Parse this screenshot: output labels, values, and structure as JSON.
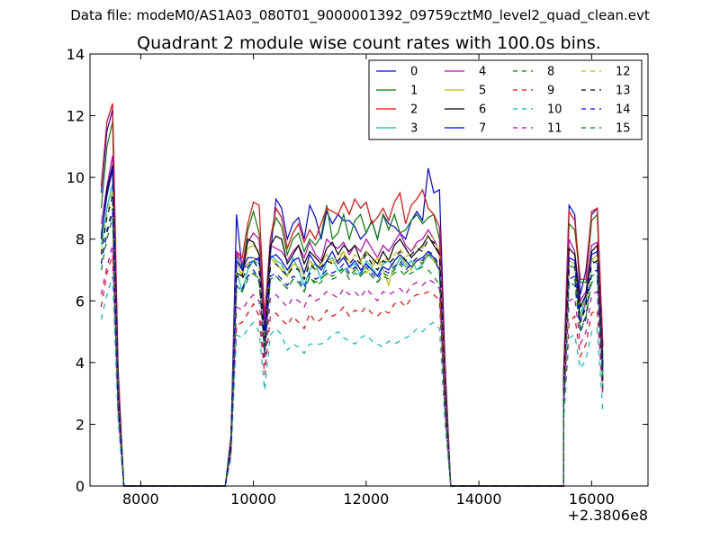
{
  "suptitle": "Data file: modeM0/AS1A03_080T01_9000001392_09759cztM0_level2_quad_clean.evt",
  "chart_data": {
    "type": "line",
    "title": "Quadrant 2 module wise count rates with 100.0s bins.",
    "xlabel": "",
    "ylabel": "",
    "x_offset_label": "+2.3806e8",
    "xlim": [
      7100,
      17000
    ],
    "ylim": [
      0,
      14
    ],
    "xticks": [
      8000,
      10000,
      12000,
      14000,
      16000
    ],
    "yticks": [
      0,
      2,
      4,
      6,
      8,
      10,
      12,
      14
    ],
    "grid": false,
    "legend": {
      "placement": "top-right",
      "columns": 4
    },
    "x": [
      7300,
      7400,
      7500,
      7600,
      7700,
      9500,
      9600,
      9700,
      9800,
      9900,
      10000,
      10100,
      10200,
      10300,
      10400,
      10500,
      10600,
      10700,
      10800,
      10900,
      11000,
      11100,
      11200,
      11300,
      11400,
      11500,
      11600,
      11700,
      11800,
      11900,
      12000,
      12100,
      12200,
      12300,
      12400,
      12500,
      12600,
      12700,
      12800,
      12900,
      13000,
      13100,
      13200,
      13300,
      13400,
      13500,
      15500,
      15600,
      15700,
      15800,
      15900,
      16000,
      16100,
      16200
    ],
    "gaps_after_x": [
      7700,
      13500
    ],
    "series": [
      {
        "name": "0",
        "color": "#0000ff",
        "dash": "solid",
        "values": [
          9.5,
          11.5,
          12.2,
          3.5,
          0,
          0,
          1.5,
          8.8,
          7.0,
          7.2,
          7.3,
          7.4,
          5.2,
          7.5,
          9.3,
          9.0,
          8.0,
          8.5,
          8.7,
          8.0,
          9.1,
          8.7,
          8.0,
          8.9,
          8.5,
          8.8,
          8.6,
          8.6,
          8.4,
          8.0,
          8.2,
          8.6,
          8.0,
          8.8,
          8.5,
          8.4,
          8.2,
          8.0,
          8.6,
          8.9,
          8.6,
          10.3,
          9.5,
          9.6,
          4.0,
          0,
          3.5,
          9.1,
          8.8,
          6.2,
          7.0,
          8.8,
          9.0,
          4.5
        ]
      },
      {
        "name": "1",
        "color": "#008000",
        "dash": "solid",
        "values": [
          9.0,
          11.0,
          11.8,
          3.5,
          0,
          0,
          1.5,
          7.5,
          7.0,
          8.3,
          8.9,
          8.2,
          5.5,
          8.0,
          8.7,
          8.4,
          7.5,
          8.0,
          8.2,
          7.6,
          8.0,
          7.8,
          8.1,
          9.1,
          8.0,
          8.2,
          8.8,
          8.0,
          8.6,
          8.8,
          8.2,
          8.6,
          8.0,
          8.8,
          8.3,
          8.8,
          8.2,
          8.3,
          8.6,
          8.8,
          8.5,
          8.7,
          8.8,
          8.0,
          3.5,
          0,
          3.5,
          8.5,
          8.3,
          6.6,
          6.6,
          8.6,
          8.8,
          4.2
        ]
      },
      {
        "name": "2",
        "color": "#ff0000",
        "dash": "solid",
        "values": [
          9.7,
          11.8,
          12.4,
          3.8,
          0,
          0,
          1.6,
          7.6,
          7.4,
          8.5,
          9.2,
          9.1,
          5.4,
          8.0,
          9.0,
          8.7,
          7.7,
          8.2,
          8.5,
          7.9,
          8.3,
          8.0,
          8.5,
          9.0,
          8.9,
          8.8,
          9.2,
          8.8,
          9.3,
          9.0,
          9.2,
          8.5,
          8.7,
          9.0,
          8.6,
          9.2,
          9.5,
          8.5,
          9.1,
          9.3,
          9.6,
          9.0,
          8.8,
          8.4,
          3.7,
          0,
          3.5,
          8.9,
          8.6,
          6.7,
          6.7,
          8.9,
          9.0,
          4.5
        ]
      },
      {
        "name": "3",
        "color": "#00bfbf",
        "dash": "solid",
        "values": [
          7.8,
          9.0,
          9.8,
          2.8,
          0,
          0,
          1.2,
          7.0,
          6.3,
          7.0,
          7.3,
          7.2,
          4.5,
          7.5,
          7.3,
          7.2,
          6.8,
          7.4,
          7.0,
          6.5,
          7.0,
          7.2,
          6.7,
          7.3,
          7.4,
          7.0,
          7.0,
          7.1,
          7.2,
          6.8,
          7.3,
          7.1,
          6.8,
          7.2,
          7.3,
          7.0,
          7.4,
          7.1,
          7.3,
          7.0,
          7.2,
          7.5,
          7.3,
          7.0,
          2.8,
          0,
          3.0,
          7.1,
          7.1,
          5.5,
          6.2,
          7.3,
          7.2,
          3.5
        ]
      },
      {
        "name": "4",
        "color": "#bf00bf",
        "dash": "solid",
        "values": [
          8.5,
          9.7,
          10.7,
          3.3,
          0,
          0,
          1.5,
          7.6,
          7.2,
          7.9,
          8.2,
          8.0,
          5.0,
          7.8,
          7.7,
          7.6,
          7.3,
          7.6,
          7.8,
          7.4,
          7.9,
          7.5,
          7.3,
          8.0,
          7.8,
          7.7,
          7.9,
          7.5,
          7.8,
          7.6,
          8.0,
          7.7,
          7.4,
          7.8,
          7.6,
          7.9,
          8.2,
          7.8,
          7.6,
          7.9,
          8.0,
          8.3,
          8.0,
          7.6,
          3.2,
          0,
          3.2,
          8.0,
          7.6,
          6.0,
          6.3,
          7.8,
          7.9,
          4.0
        ]
      },
      {
        "name": "5",
        "color": "#bfbf00",
        "dash": "solid",
        "values": [
          8.2,
          9.5,
          10.2,
          3.0,
          0,
          0,
          1.3,
          7.2,
          6.8,
          7.7,
          7.8,
          7.6,
          4.7,
          7.4,
          7.2,
          7.0,
          6.8,
          7.2,
          7.1,
          6.9,
          7.3,
          7.0,
          7.2,
          7.5,
          7.2,
          7.3,
          7.6,
          7.1,
          7.0,
          7.3,
          6.9,
          7.1,
          7.4,
          7.0,
          6.5,
          7.3,
          7.5,
          7.2,
          7.0,
          7.4,
          7.2,
          7.6,
          7.3,
          7.0,
          3.0,
          0,
          3.0,
          7.3,
          7.2,
          5.8,
          6.0,
          7.3,
          7.5,
          3.8
        ]
      },
      {
        "name": "6",
        "color": "#000000",
        "dash": "solid",
        "values": [
          8.0,
          9.6,
          10.4,
          3.1,
          0,
          0,
          1.4,
          6.9,
          6.8,
          8.0,
          7.9,
          7.5,
          4.8,
          7.8,
          8.1,
          8.0,
          7.2,
          7.5,
          7.8,
          7.2,
          7.6,
          7.4,
          7.2,
          7.7,
          7.9,
          7.5,
          7.8,
          7.6,
          7.8,
          7.3,
          7.6,
          7.4,
          7.2,
          7.6,
          7.3,
          7.8,
          8.0,
          7.7,
          7.4,
          7.6,
          7.8,
          8.1,
          7.8,
          7.5,
          3.1,
          0,
          3.1,
          7.7,
          7.5,
          5.8,
          6.2,
          7.6,
          7.8,
          3.9
        ]
      },
      {
        "name": "7",
        "color": "#0000ff",
        "dash": "solid",
        "values": [
          8.1,
          9.4,
          10.3,
          3.0,
          0,
          0,
          1.3,
          7.3,
          7.0,
          7.4,
          7.4,
          7.3,
          4.9,
          7.4,
          7.5,
          7.3,
          7.0,
          7.3,
          7.4,
          6.9,
          7.5,
          7.2,
          7.0,
          7.3,
          7.6,
          7.2,
          7.4,
          7.1,
          7.3,
          7.0,
          7.2,
          7.0,
          6.8,
          7.1,
          7.0,
          7.3,
          7.5,
          7.3,
          7.1,
          7.3,
          7.4,
          7.6,
          7.4,
          7.0,
          2.9,
          0,
          2.8,
          7.4,
          7.3,
          5.3,
          6.0,
          7.5,
          7.6,
          3.7
        ]
      },
      {
        "name": "8",
        "color": "#008000",
        "dash": "dashed",
        "values": [
          7.2,
          8.3,
          9.0,
          2.7,
          0,
          0,
          1.2,
          6.5,
          6.3,
          6.8,
          6.9,
          6.7,
          4.3,
          6.7,
          6.8,
          6.6,
          6.4,
          6.7,
          6.6,
          6.3,
          6.8,
          6.5,
          6.6,
          6.9,
          6.7,
          6.8,
          7.0,
          6.7,
          6.9,
          6.8,
          7.0,
          6.8,
          6.6,
          6.8,
          6.7,
          6.9,
          7.0,
          6.8,
          6.9,
          7.0,
          7.1,
          7.0,
          6.8,
          6.5,
          2.7,
          0,
          2.6,
          6.6,
          6.5,
          5.0,
          5.5,
          6.6,
          6.7,
          3.4
        ]
      },
      {
        "name": "9",
        "color": "#ff0000",
        "dash": "dashed",
        "values": [
          5.8,
          6.9,
          7.5,
          2.3,
          0,
          0,
          1.0,
          5.2,
          5.3,
          5.6,
          5.9,
          5.5,
          3.6,
          5.5,
          5.6,
          5.4,
          5.2,
          5.5,
          5.3,
          5.1,
          5.6,
          5.3,
          5.4,
          5.7,
          5.5,
          5.6,
          5.8,
          5.5,
          5.7,
          5.6,
          5.8,
          5.6,
          5.5,
          5.7,
          5.6,
          5.9,
          6.0,
          5.8,
          6.1,
          6.2,
          6.2,
          6.3,
          6.2,
          6.0,
          2.3,
          0,
          2.2,
          5.3,
          5.5,
          4.2,
          4.6,
          5.6,
          5.7,
          2.9
        ]
      },
      {
        "name": "10",
        "color": "#00bfbf",
        "dash": "dashed",
        "values": [
          5.4,
          6.2,
          6.8,
          2.1,
          0,
          0,
          0.9,
          4.9,
          4.8,
          5.1,
          5.3,
          5.0,
          3.1,
          4.9,
          5.1,
          4.9,
          4.4,
          4.6,
          4.5,
          4.3,
          4.6,
          4.6,
          4.6,
          4.7,
          4.9,
          5.0,
          4.8,
          4.7,
          4.6,
          4.8,
          4.9,
          4.7,
          4.6,
          4.5,
          4.7,
          4.6,
          4.7,
          4.8,
          4.9,
          5.1,
          5.0,
          5.2,
          5.3,
          5.1,
          2.0,
          0,
          2.0,
          4.8,
          4.9,
          3.8,
          4.1,
          5.0,
          5.1,
          2.4
        ]
      },
      {
        "name": "11",
        "color": "#bf00bf",
        "dash": "dashed",
        "values": [
          6.2,
          7.1,
          7.8,
          2.4,
          0,
          0,
          1.1,
          5.8,
          5.7,
          6.0,
          6.2,
          6.0,
          3.9,
          6.1,
          6.2,
          6.0,
          5.8,
          6.1,
          6.0,
          5.8,
          6.2,
          6.0,
          6.1,
          6.3,
          6.2,
          6.1,
          6.4,
          6.2,
          6.3,
          6.1,
          6.4,
          6.2,
          6.0,
          6.3,
          6.2,
          6.3,
          6.4,
          6.2,
          6.5,
          6.6,
          6.5,
          6.7,
          6.6,
          6.4,
          2.4,
          0,
          2.4,
          6.0,
          6.1,
          4.6,
          5.0,
          6.2,
          6.3,
          3.1
        ]
      },
      {
        "name": "12",
        "color": "#bfbf00",
        "dash": "dashed",
        "values": [
          7.6,
          8.8,
          9.6,
          2.9,
          0,
          0,
          1.3,
          7.0,
          6.9,
          7.2,
          7.4,
          7.1,
          4.6,
          7.2,
          7.3,
          7.1,
          6.9,
          7.2,
          7.1,
          6.8,
          7.3,
          7.1,
          7.2,
          7.5,
          7.3,
          7.4,
          7.6,
          7.3,
          7.5,
          7.3,
          7.6,
          7.3,
          7.1,
          7.4,
          7.3,
          7.5,
          7.7,
          7.4,
          7.6,
          7.8,
          7.7,
          8.2,
          8.0,
          7.6,
          2.9,
          0,
          2.8,
          7.1,
          7.2,
          5.4,
          5.9,
          7.3,
          7.4,
          3.6
        ]
      },
      {
        "name": "13",
        "color": "#000000",
        "dash": "dashed",
        "values": [
          7.5,
          8.7,
          9.4,
          2.8,
          0,
          0,
          1.3,
          6.8,
          6.7,
          7.1,
          7.3,
          7.0,
          4.5,
          7.1,
          7.2,
          7.0,
          6.8,
          7.1,
          7.0,
          6.7,
          7.2,
          7.0,
          7.1,
          7.3,
          7.2,
          7.3,
          7.5,
          7.2,
          7.4,
          7.2,
          7.5,
          7.2,
          7.0,
          7.3,
          7.2,
          7.4,
          7.6,
          7.3,
          7.5,
          7.7,
          7.6,
          8.0,
          7.9,
          7.5,
          2.8,
          0,
          2.7,
          7.0,
          7.1,
          5.3,
          5.8,
          7.2,
          7.3,
          3.5
        ]
      },
      {
        "name": "14",
        "color": "#0000ff",
        "dash": "dashed",
        "values": [
          7.2,
          8.2,
          8.9,
          2.7,
          0,
          0,
          1.2,
          6.5,
          6.4,
          6.8,
          7.0,
          6.7,
          4.3,
          6.8,
          6.9,
          6.7,
          6.5,
          6.8,
          6.7,
          6.4,
          6.9,
          6.7,
          6.8,
          7.0,
          6.9,
          7.0,
          7.2,
          6.9,
          7.1,
          6.9,
          7.2,
          6.9,
          6.7,
          7.0,
          6.9,
          7.1,
          7.3,
          7.0,
          7.2,
          7.4,
          7.3,
          7.6,
          7.5,
          7.1,
          2.7,
          0,
          2.6,
          6.7,
          6.8,
          5.1,
          5.5,
          6.9,
          7.0,
          3.3
        ]
      },
      {
        "name": "15",
        "color": "#008000",
        "dash": "dashed",
        "values": [
          7.0,
          8.0,
          8.7,
          2.6,
          0,
          0,
          1.2,
          6.4,
          6.3,
          6.7,
          6.9,
          6.6,
          4.2,
          6.7,
          6.8,
          6.6,
          6.4,
          6.7,
          6.6,
          6.3,
          6.8,
          6.6,
          6.7,
          6.9,
          6.8,
          6.9,
          7.1,
          6.8,
          7.0,
          6.8,
          7.1,
          6.8,
          6.6,
          6.9,
          6.8,
          7.0,
          7.2,
          6.9,
          7.1,
          7.3,
          7.2,
          7.5,
          7.4,
          7.0,
          2.6,
          0,
          2.5,
          6.6,
          6.7,
          5.0,
          5.4,
          6.8,
          6.9,
          3.2
        ]
      }
    ]
  }
}
